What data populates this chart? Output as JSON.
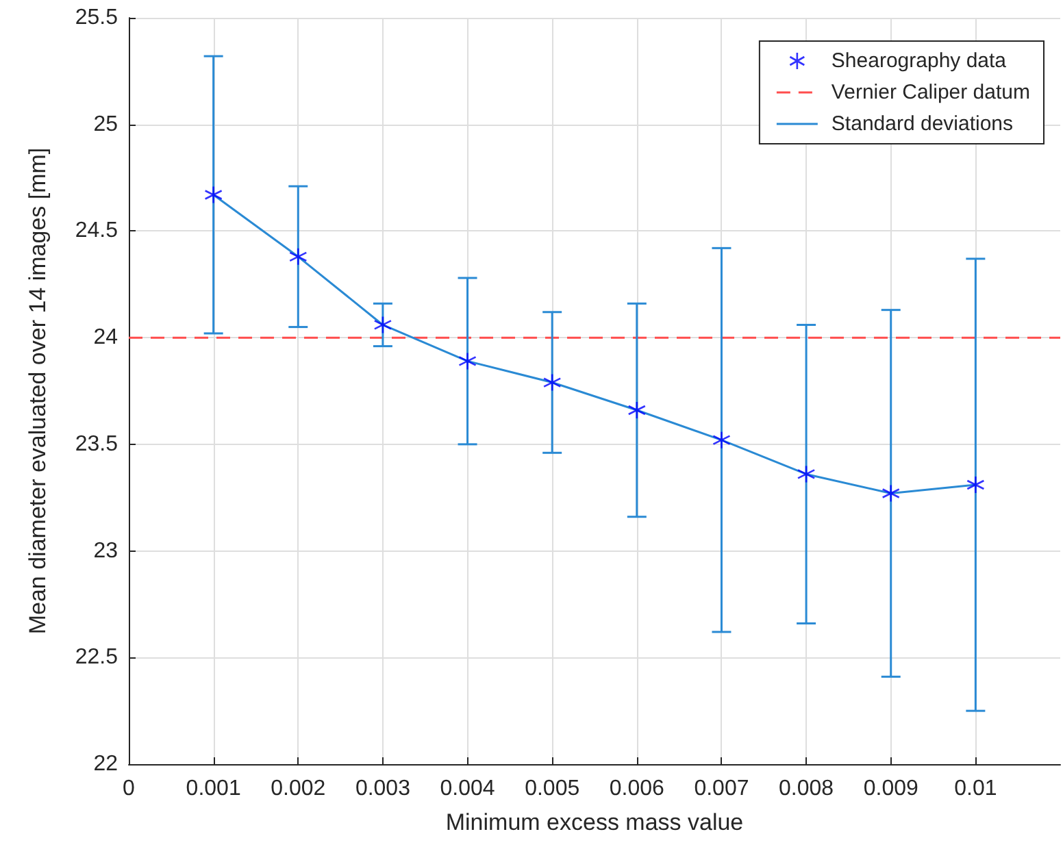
{
  "chart_data": {
    "type": "line",
    "xlabel": "Minimum excess mass value",
    "ylabel": "Mean diameter evaluated over 14 images [mm]",
    "x": [
      0.001,
      0.002,
      0.003,
      0.004,
      0.005,
      0.006,
      0.007,
      0.008,
      0.009,
      0.01
    ],
    "series": [
      {
        "name": "Shearography data",
        "type": "scatter",
        "color": "#0000ff",
        "marker": "cross",
        "values": [
          24.67,
          24.38,
          24.06,
          23.89,
          23.79,
          23.66,
          23.52,
          23.36,
          23.27,
          23.31
        ]
      },
      {
        "name": "Standard deviations",
        "color": "#2a8ad4",
        "marker": "none",
        "line_style": "solid",
        "values": [
          24.67,
          24.38,
          24.06,
          23.89,
          23.79,
          23.66,
          23.52,
          23.36,
          23.27,
          23.31
        ],
        "errors": [
          [
            24.02,
            25.32
          ],
          [
            24.05,
            24.71
          ],
          [
            23.96,
            24.16
          ],
          [
            23.5,
            24.28
          ],
          [
            23.46,
            24.12
          ],
          [
            23.16,
            24.16
          ],
          [
            22.62,
            24.42
          ],
          [
            22.66,
            24.06
          ],
          [
            22.41,
            24.13
          ],
          [
            22.25,
            24.37
          ]
        ]
      }
    ],
    "ref_lines": [
      {
        "axis": "y",
        "value": 24,
        "label": "Vernier Caliper datum",
        "color": "#ff4d4d",
        "line_style": "dashed"
      }
    ],
    "xlim": [
      0,
      0.011
    ],
    "xticks": [
      0,
      0.001,
      0.002,
      0.003,
      0.004,
      0.005,
      0.006,
      0.007,
      0.008,
      0.009,
      0.01
    ],
    "ylim": [
      22,
      25.5
    ],
    "yticks": [
      22,
      22.5,
      23,
      23.5,
      24,
      24.5,
      25,
      25.5
    ],
    "grid": true,
    "legend": "top right"
  }
}
